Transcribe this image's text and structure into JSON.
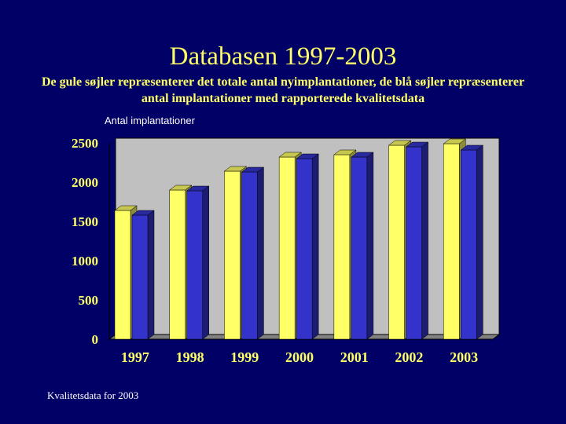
{
  "slide": {
    "title": "Databasen 1997-2003",
    "subtitle": "De gule søjler repræsenterer det totale antal nyimplantationer, de blå søjler repræsenterer antal implantationer med rapporterede kvalitetsdata",
    "footer": "Kvalitetsdata for 2003"
  },
  "colors": {
    "background": "#000066",
    "title": "#ffff66",
    "yellow_series": "#ffff66",
    "blue_series": "#3333cc",
    "plot_background": "#c0c0c0"
  },
  "chart_data": {
    "type": "bar",
    "title": "",
    "ylabel": "Antal implantationer",
    "xlabel": "",
    "categories": [
      "1997",
      "1998",
      "1999",
      "2000",
      "2001",
      "2002",
      "2003"
    ],
    "series": [
      {
        "values": [
          1640,
          1900,
          2140,
          2320,
          2350,
          2470,
          2490
        ]
      },
      {
        "values": [
          1580,
          1890,
          2130,
          2300,
          2320,
          2450,
          2410
        ]
      }
    ],
    "ylim": [
      0,
      2500
    ],
    "yticks": [
      0,
      500,
      1000,
      1500,
      2000,
      2500
    ],
    "grid": false,
    "legend": "none"
  }
}
